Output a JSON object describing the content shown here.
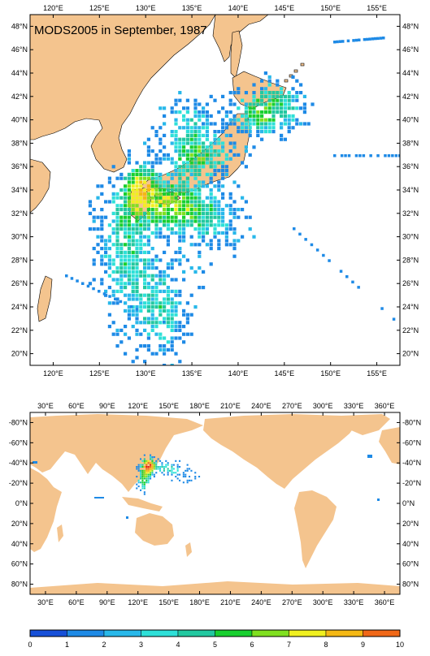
{
  "title": "MODS2005 in September, 1987",
  "regional_map": {
    "x_ticks": [
      "120°E",
      "125°E",
      "130°E",
      "135°E",
      "140°E",
      "145°E",
      "150°E",
      "155°E"
    ],
    "y_ticks": [
      "20°N",
      "22°N",
      "24°N",
      "26°N",
      "28°N",
      "30°N",
      "32°N",
      "34°N",
      "36°N",
      "38°N",
      "40°N",
      "42°N",
      "44°N",
      "46°N",
      "48°N"
    ],
    "lon_range": [
      119,
      157.5
    ],
    "lat_range": [
      18.8,
      49.4
    ]
  },
  "global_map": {
    "x_ticks": [
      "30°E",
      "60°E",
      "90°E",
      "120°E",
      "150°E",
      "180°E",
      "210°E",
      "240°E",
      "270°E",
      "300°E",
      "330°E",
      "360°E"
    ],
    "y_ticks": [
      "80°N",
      "60°N",
      "40°N",
      "20°N",
      "0°N",
      "-20°N",
      "-40°N",
      "-60°N",
      "-80°N"
    ],
    "lon_range": [
      20,
      375
    ],
    "lat_range": [
      -80,
      80
    ]
  },
  "colorbar": {
    "labels": [
      "0",
      "1",
      "2",
      "3",
      "4",
      "5",
      "6",
      "7",
      "8",
      "9",
      "10"
    ],
    "colors": [
      "#1750d8",
      "#1e8ae6",
      "#28b8ea",
      "#2ee0d8",
      "#22c8a0",
      "#18d030",
      "#80e020",
      "#f0f020",
      "#f4b814",
      "#f06818",
      "#e02018"
    ]
  },
  "colors": {
    "land": "#f4c48e",
    "ocean": "#ffffff"
  }
}
